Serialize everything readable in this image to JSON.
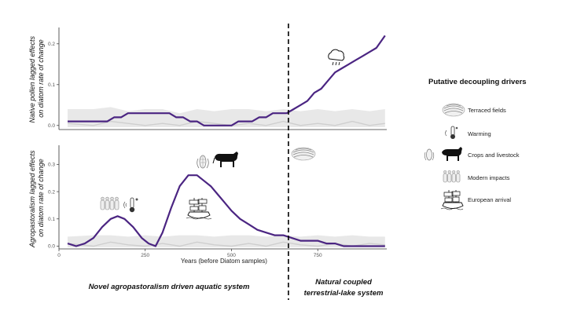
{
  "chart_data": [
    {
      "type": "line",
      "ylabel": "Native pollen lagged effects\non diatom rate of change",
      "xlim": [
        0,
        950
      ],
      "ylim": [
        -0.01,
        0.24
      ],
      "y_ticks": [
        0.0,
        0.1,
        0.2
      ],
      "x_ticks": [],
      "series": [
        {
          "color": "#4b2582",
          "x": [
            25,
            60,
            100,
            120,
            140,
            160,
            180,
            200,
            230,
            260,
            300,
            320,
            340,
            360,
            380,
            400,
            420,
            450,
            480,
            500,
            520,
            540,
            560,
            580,
            600,
            620,
            640,
            660,
            680,
            700,
            720,
            740,
            760,
            780,
            800,
            820,
            840,
            860,
            880,
            900,
            920,
            945
          ],
          "values": [
            0.01,
            0.01,
            0.01,
            0.01,
            0.01,
            0.02,
            0.02,
            0.03,
            0.03,
            0.03,
            0.03,
            0.03,
            0.02,
            0.02,
            0.01,
            0.01,
            0.0,
            0.0,
            0.0,
            0.0,
            0.01,
            0.01,
            0.01,
            0.02,
            0.02,
            0.03,
            0.03,
            0.03,
            0.04,
            0.05,
            0.06,
            0.08,
            0.09,
            0.11,
            0.13,
            0.14,
            0.15,
            0.16,
            0.17,
            0.18,
            0.19,
            0.22
          ]
        }
      ],
      "band": {
        "x": [
          25,
          100,
          150,
          200,
          250,
          300,
          350,
          400,
          450,
          500,
          550,
          600,
          650,
          700,
          750,
          800,
          850,
          900,
          945
        ],
        "upper": [
          0.04,
          0.04,
          0.045,
          0.035,
          0.04,
          0.04,
          0.03,
          0.04,
          0.035,
          0.04,
          0.04,
          0.035,
          0.04,
          0.035,
          0.04,
          0.035,
          0.04,
          0.035,
          0.04
        ],
        "mid": [
          0.005,
          0.0,
          0.01,
          0.005,
          0.0,
          0.005,
          0.0,
          0.01,
          0.005,
          0.0,
          0.005,
          0.0,
          0.01,
          0.0,
          0.005,
          0.0,
          0.01,
          0.0,
          0.005
        ]
      },
      "icons": [
        "rain-cloud-icon"
      ]
    },
    {
      "type": "line",
      "ylabel": "Agropastoralism lagged effects\non diatom rate of change",
      "xlabel": "Years (before Diatom samples)",
      "xlim": [
        0,
        950
      ],
      "ylim": [
        -0.01,
        0.37
      ],
      "y_ticks": [
        0.0,
        0.1,
        0.2,
        0.3
      ],
      "x_ticks": [
        0,
        250,
        500,
        750
      ],
      "series": [
        {
          "color": "#4b2582",
          "x": [
            25,
            50,
            75,
            100,
            125,
            150,
            170,
            190,
            215,
            240,
            260,
            280,
            300,
            325,
            350,
            375,
            400,
            420,
            440,
            460,
            480,
            500,
            525,
            550,
            575,
            600,
            625,
            650,
            675,
            700,
            725,
            750,
            775,
            800,
            825,
            850,
            875,
            900,
            925,
            945
          ],
          "values": [
            0.01,
            0.0,
            0.01,
            0.03,
            0.07,
            0.1,
            0.11,
            0.1,
            0.07,
            0.03,
            0.01,
            0.0,
            0.05,
            0.14,
            0.22,
            0.26,
            0.26,
            0.24,
            0.22,
            0.19,
            0.16,
            0.13,
            0.1,
            0.08,
            0.06,
            0.05,
            0.04,
            0.04,
            0.03,
            0.02,
            0.02,
            0.02,
            0.01,
            0.01,
            0.0,
            0.0,
            0.0,
            0.0,
            0.0,
            0.0
          ]
        }
      ],
      "band": {
        "x": [
          25,
          100,
          150,
          200,
          250,
          300,
          350,
          400,
          450,
          500,
          550,
          600,
          650,
          700,
          750,
          800,
          850,
          900,
          945
        ],
        "upper": [
          0.035,
          0.04,
          0.04,
          0.035,
          0.04,
          0.035,
          0.04,
          0.04,
          0.035,
          0.04,
          0.04,
          0.035,
          0.04,
          0.035,
          0.04,
          0.035,
          0.04,
          0.035,
          0.035
        ],
        "mid": [
          0.01,
          0.0,
          0.015,
          0.005,
          0.0,
          0.01,
          0.0,
          0.015,
          0.005,
          0.0,
          0.01,
          0.0,
          0.015,
          0.005,
          0.0,
          0.01,
          0.0,
          0.01,
          0.005
        ]
      },
      "icons": [
        "warming-icon",
        "modern-impacts-icon",
        "crops-icon",
        "livestock-icon",
        "european-arrival-icon",
        "terraced-fields-icon"
      ]
    }
  ],
  "divider_x": 665,
  "regions": {
    "left": "Novel agropastoralism driven aquatic system",
    "right_line1": "Natural coupled",
    "right_line2": "terrestrial-lake system"
  },
  "legend": {
    "title": "Putative decoupling drivers",
    "items": [
      {
        "label": "Terraced fields",
        "icon": "terraced-fields-icon"
      },
      {
        "label": "Warming",
        "icon": "thermometer-icon"
      },
      {
        "label": "Crops and livestock",
        "icon": "corn-cow-icon"
      },
      {
        "label": "Modern impacts",
        "icon": "modern-impacts-icon"
      },
      {
        "label": "European arrival",
        "icon": "ship-icon"
      }
    ]
  },
  "colors": {
    "line": "#4b2582",
    "band": "#e8e8e8",
    "band_mid": "#cfcfcf",
    "axis": "#333333"
  }
}
